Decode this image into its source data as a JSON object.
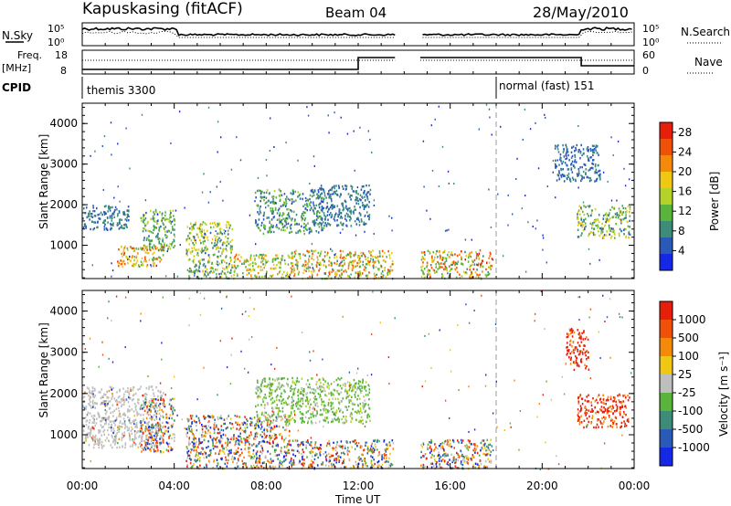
{
  "header": {
    "station": "Kapuskasing (fitACF)",
    "beam": "Beam 04",
    "date": "28/May/2010"
  },
  "top_panels": {
    "nsky_label": "N.Sky",
    "nsky_ticks": [
      "10^5",
      "10^0"
    ],
    "nsearch_label": "N.Search",
    "nsearch_ticks": [
      "10^5",
      "10^0"
    ],
    "freq_label_1": "Freq.",
    "freq_label_2": "[MHz]",
    "freq_ticks": [
      "18",
      "8"
    ],
    "nave_label": "Nave",
    "nave_ticks": [
      "60",
      "0"
    ],
    "cpid_label": "CPID",
    "cpid_segments": [
      {
        "label": "themis 3300",
        "start_hour": 0.0
      },
      {
        "label": "normal (fast) 151",
        "start_hour": 18.0
      }
    ]
  },
  "chart_data": [
    {
      "type": "heatmap",
      "title": "",
      "xlabel": "Time UT",
      "ylabel": "Slant Range [km]",
      "xlim": [
        0,
        24
      ],
      "ylim": [
        180,
        4500
      ],
      "x_ticks": [
        "00:00",
        "04:00",
        "08:00",
        "12:00",
        "16:00",
        "20:00",
        "00:00"
      ],
      "y_ticks": [
        1000,
        2000,
        3000,
        4000
      ],
      "colorbar": {
        "label": "Power [dB]",
        "ticks": [
          4,
          8,
          12,
          16,
          20,
          24,
          28
        ],
        "range": [
          0,
          30
        ],
        "colors": [
          "#1428e6",
          "#2a5ab8",
          "#3c8c78",
          "#5ab43c",
          "#b4d228",
          "#f0c814",
          "#f58a0a",
          "#f05008",
          "#e61e0a"
        ]
      },
      "scatter_regions": [
        {
          "t": [
            0.0,
            2.0
          ],
          "r": [
            1400,
            2000
          ],
          "val": [
            4,
            10
          ]
        },
        {
          "t": [
            1.5,
            3.5
          ],
          "r": [
            500,
            1000
          ],
          "val": [
            12,
            28
          ]
        },
        {
          "t": [
            2.5,
            4.0
          ],
          "r": [
            900,
            1900
          ],
          "val": [
            6,
            16
          ]
        },
        {
          "t": [
            4.5,
            6.5
          ],
          "r": [
            200,
            1600
          ],
          "val": [
            6,
            20
          ]
        },
        {
          "t": [
            6.5,
            9.0
          ],
          "r": [
            200,
            800
          ],
          "val": [
            8,
            24
          ]
        },
        {
          "t": [
            7.5,
            10.5
          ],
          "r": [
            1300,
            2400
          ],
          "val": [
            4,
            14
          ]
        },
        {
          "t": [
            10.0,
            12.5
          ],
          "r": [
            1500,
            2500
          ],
          "val": [
            4,
            10
          ]
        },
        {
          "t": [
            9.0,
            13.5
          ],
          "r": [
            200,
            900
          ],
          "val": [
            8,
            26
          ]
        },
        {
          "t": [
            14.7,
            17.8
          ],
          "r": [
            200,
            900
          ],
          "val": [
            8,
            28
          ]
        },
        {
          "t": [
            21.5,
            23.8
          ],
          "r": [
            1200,
            2000
          ],
          "val": [
            4,
            20
          ]
        },
        {
          "t": [
            20.5,
            22.5
          ],
          "r": [
            2600,
            3500
          ],
          "val": [
            4,
            8
          ]
        }
      ]
    },
    {
      "type": "heatmap",
      "title": "",
      "xlabel": "Time UT",
      "ylabel": "Slant Range [km]",
      "xlim": [
        0,
        24
      ],
      "ylim": [
        180,
        4500
      ],
      "x_ticks": [
        "00:00",
        "04:00",
        "08:00",
        "12:00",
        "16:00",
        "20:00",
        "00:00"
      ],
      "y_ticks": [
        1000,
        2000,
        3000,
        4000
      ],
      "colorbar": {
        "label": "Velocity [m s⁻¹]",
        "ticks": [
          "1000",
          "500",
          "100",
          "25",
          "-25",
          "-100",
          "-500",
          "-1000"
        ],
        "colors": [
          "#1428e6",
          "#2a5ab8",
          "#3c8c78",
          "#5ab43c",
          "#bebebe",
          "#f0c814",
          "#f58a0a",
          "#f05008",
          "#e61e0a"
        ]
      },
      "scatter_regions": [
        {
          "t": [
            0.0,
            3.5
          ],
          "r": [
            700,
            2200
          ],
          "val": "ground"
        },
        {
          "t": [
            2.5,
            4.0
          ],
          "r": [
            600,
            1900
          ],
          "val": "mixed"
        },
        {
          "t": [
            4.5,
            9.0
          ],
          "r": [
            200,
            1500
          ],
          "val": "mixed"
        },
        {
          "t": [
            7.5,
            12.5
          ],
          "r": [
            1300,
            2400
          ],
          "val": "green"
        },
        {
          "t": [
            9.0,
            13.5
          ],
          "r": [
            200,
            900
          ],
          "val": "mixed"
        },
        {
          "t": [
            14.7,
            17.8
          ],
          "r": [
            200,
            900
          ],
          "val": "mixed"
        },
        {
          "t": [
            21.5,
            23.8
          ],
          "r": [
            1200,
            2000
          ],
          "val": "red"
        },
        {
          "t": [
            21.0,
            22.0
          ],
          "r": [
            2600,
            3600
          ],
          "val": "red"
        }
      ]
    }
  ]
}
